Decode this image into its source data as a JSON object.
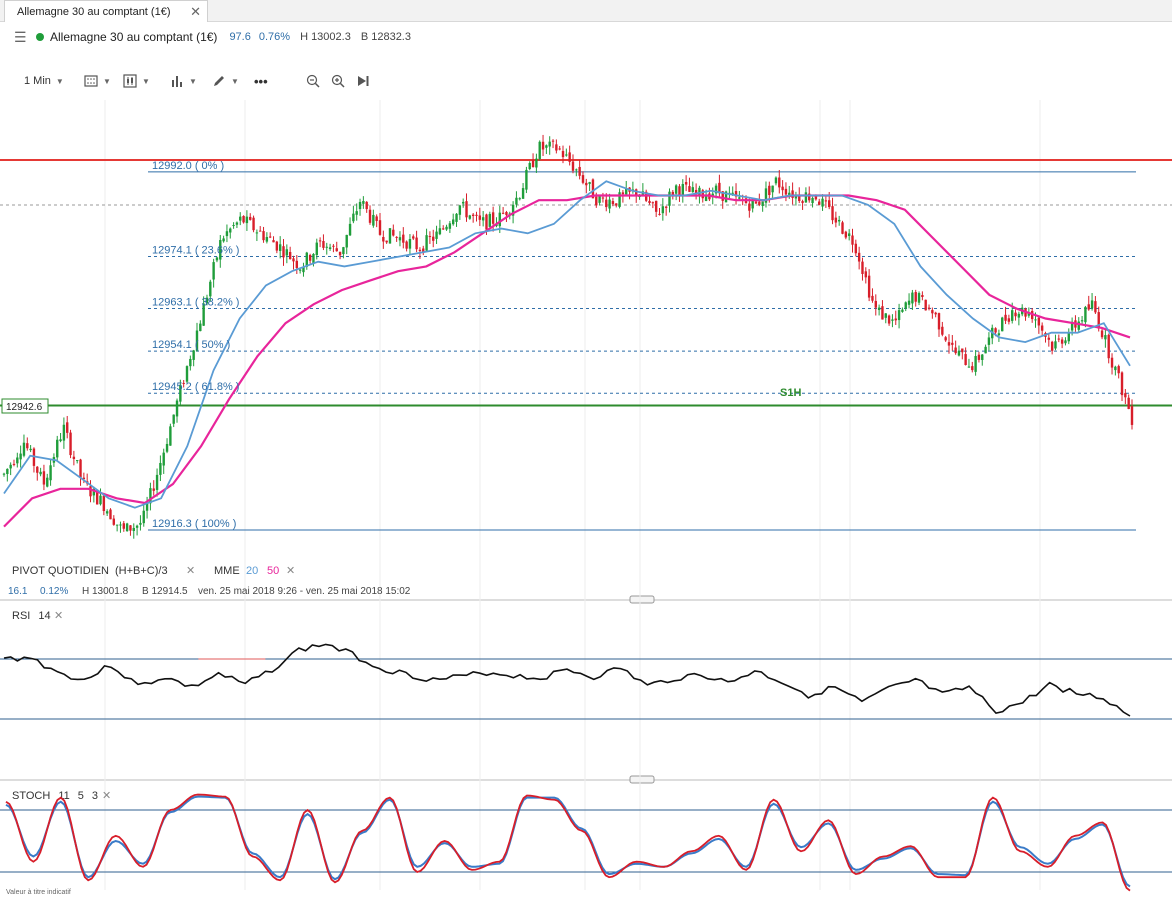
{
  "tab": {
    "title": "Allemagne 30 au comptant (1€)",
    "close": "✕"
  },
  "header": {
    "instrument": "Allemagne 30 au comptant (1€)",
    "change": "97.6",
    "change_pct": "0.76%",
    "high": "H 13002.3",
    "low": "B 12832.3"
  },
  "toolbar": {
    "interval": "1 Min",
    "more": "•••"
  },
  "price_tag": "12942.6",
  "fibo_labels": [
    "12992.0 ( 0% )",
    "12974.1 ( 23.6% )",
    "12963.1 ( 38.2% )",
    "12954.1 ( 50% )",
    "12945.2 ( 61.8% )",
    "12916.3 ( 100% )"
  ],
  "pivot_label": "S1H",
  "legend": {
    "pivot": "PIVOT  QUOTIDIEN",
    "pivot_formula": "(H+B+C)/3",
    "mme": "MME",
    "mme_fast": "20",
    "mme_slow": "50",
    "close": "✕",
    "stats_change": "16.1",
    "stats_pct": "0.12%",
    "stats_high": "H 13001.8",
    "stats_low": "B 12914.5",
    "stats_range": "ven. 25 mai 2018 9:26 - ven. 25 mai 2018 15:02"
  },
  "rsi": {
    "label": "RSI",
    "period": "14"
  },
  "stoch": {
    "label": "STOCH",
    "k": "11",
    "d": "5",
    "smooth": "3"
  },
  "footer": "Valeur à titre indicatif",
  "colors": {
    "up": "#1f9d3a",
    "down": "#d81e2a",
    "ema20": "#5a9bd4",
    "ema50": "#e8259b",
    "resistance": "#e53935",
    "support": "#2e8b2e",
    "fibo": "#2f6ea8"
  },
  "chart_data": [
    {
      "type": "candlestick",
      "title": "Allemagne 30 au comptant (1€)",
      "interval": "1 Min",
      "ylim": [
        12905,
        13005
      ],
      "horizontal_lines": [
        {
          "name": "resistance",
          "value": 12994.5
        },
        {
          "name": "S1H",
          "value": 12942.6
        }
      ],
      "fibonacci": [
        {
          "level": "0%",
          "value": 12992.0
        },
        {
          "level": "23.6%",
          "value": 12974.1
        },
        {
          "level": "38.2%",
          "value": 12963.1
        },
        {
          "level": "50%",
          "value": 12954.1
        },
        {
          "level": "61.8%",
          "value": 12945.2
        },
        {
          "level": "100%",
          "value": 12916.3
        }
      ],
      "close_path": [
        12928,
        12935,
        12926,
        12938,
        12926,
        12922,
        12916,
        12918,
        12932,
        12947,
        12962,
        12978,
        12982,
        12979,
        12976,
        12972,
        12977,
        12975,
        12986,
        12979,
        12978,
        12976,
        12979,
        12985,
        12981,
        12982,
        12987,
        12997,
        12997,
        12992,
        12986,
        12986,
        12988,
        12983,
        12989,
        12987,
        12988,
        12986,
        12985,
        12990,
        12987,
        12987,
        12982,
        12977,
        12963,
        12960,
        12966,
        12962,
        12954,
        12951,
        12958,
        12963,
        12962,
        12955,
        12959,
        12964,
        12952,
        12940
      ],
      "ema20_path": [
        12924,
        12932,
        12931,
        12927,
        12923,
        12921,
        12923,
        12934,
        12950,
        12961,
        12968,
        12971,
        12973,
        12972,
        12973,
        12974,
        12975,
        12976,
        12979,
        12980,
        12979,
        12981,
        12986,
        12990,
        12988,
        12987,
        12987,
        12988,
        12987,
        12986,
        12987,
        12987,
        12987,
        12985,
        12981,
        12972,
        12966,
        12961,
        12957,
        12956,
        12958,
        12958,
        12960,
        12951
      ],
      "ema50_path": [
        12917,
        12923,
        12925,
        12925,
        12923,
        12922,
        12926,
        12934,
        12944,
        12953,
        12960,
        12964,
        12967,
        12969,
        12971,
        12972,
        12975,
        12979,
        12983,
        12986,
        12986,
        12987,
        12987,
        12987,
        12987,
        12987,
        12986,
        12986,
        12987,
        12987,
        12987,
        12986,
        12984,
        12978,
        12972,
        12966,
        12963,
        12961,
        12960,
        12959,
        12957
      ],
      "candles": "~340 one-minute candles, up/down colored"
    },
    {
      "type": "line",
      "name": "RSI 14",
      "ylim": [
        0,
        100
      ],
      "bands": [
        30,
        70
      ],
      "values": [
        70,
        71,
        61,
        56,
        66,
        52,
        58,
        51,
        60,
        53,
        63,
        76,
        80,
        73,
        64,
        60,
        56,
        58,
        61,
        59,
        57,
        63,
        58,
        64,
        52,
        57,
        60,
        54,
        62,
        55,
        46,
        51,
        41,
        50,
        56,
        46,
        51,
        35,
        41,
        53,
        47,
        44,
        32
      ]
    },
    {
      "type": "line",
      "name": "STOCH 11 5 3",
      "ylim": [
        0,
        100
      ],
      "bands": [
        20,
        80
      ],
      "k_values": [
        88,
        30,
        92,
        12,
        55,
        25,
        80,
        95,
        93,
        35,
        12,
        80,
        10,
        60,
        92,
        20,
        50,
        22,
        30,
        94,
        90,
        60,
        15,
        30,
        25,
        40,
        55,
        22,
        90,
        40,
        70,
        18,
        35,
        45,
        15,
        15,
        92,
        40,
        25,
        55,
        68,
        2
      ],
      "d_values": [
        85,
        35,
        88,
        15,
        50,
        28,
        78,
        93,
        92,
        38,
        15,
        76,
        13,
        58,
        90,
        25,
        48,
        25,
        28,
        92,
        92,
        62,
        18,
        28,
        25,
        38,
        52,
        25,
        86,
        44,
        67,
        22,
        33,
        43,
        18,
        17,
        88,
        44,
        28,
        52,
        66,
        6
      ]
    }
  ]
}
